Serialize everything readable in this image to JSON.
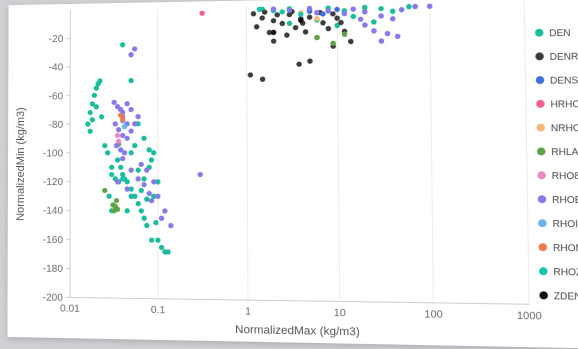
{
  "chart_data": {
    "type": "scatter",
    "title": "",
    "xlabel": "NormalizedMax (kg/m3)",
    "ylabel": "NormalizedMin (kg/m3)",
    "x_scale": "log",
    "xlim": [
      0.01,
      1000
    ],
    "ylim": [
      -200,
      0
    ],
    "x_ticks": [
      "0.01",
      "0.1",
      "1",
      "10",
      "100",
      "1000"
    ],
    "y_ticks": [
      "-20",
      "-40",
      "-60",
      "-80",
      "-100",
      "-120",
      "-140",
      "-160",
      "-180",
      "-200"
    ],
    "grid": "vertical",
    "legend_position": "right",
    "series": [
      {
        "name": "DEN",
        "color": "#1abc9c",
        "points": [
          [
            0.016,
            -80
          ],
          [
            0.017,
            -72
          ],
          [
            0.018,
            -66
          ],
          [
            0.019,
            -60
          ],
          [
            0.02,
            -55
          ],
          [
            0.021,
            -52
          ],
          [
            0.022,
            -50
          ],
          [
            0.017,
            -85
          ],
          [
            0.018,
            -77
          ],
          [
            0.02,
            -68
          ],
          [
            0.023,
            -75
          ],
          [
            0.025,
            -95
          ],
          [
            0.027,
            -100
          ],
          [
            0.03,
            -110
          ],
          [
            0.033,
            -118
          ],
          [
            0.036,
            -120
          ],
          [
            0.04,
            -115
          ],
          [
            0.045,
            -120
          ],
          [
            0.05,
            -125
          ],
          [
            0.055,
            -130
          ],
          [
            0.06,
            -135
          ],
          [
            0.065,
            -140
          ],
          [
            0.07,
            -145
          ],
          [
            0.075,
            -150
          ],
          [
            0.08,
            -110
          ],
          [
            0.085,
            -105
          ],
          [
            0.09,
            -100
          ],
          [
            0.1,
            -160
          ],
          [
            0.11,
            -165
          ],
          [
            0.12,
            -168
          ],
          [
            0.13,
            -168
          ],
          [
            0.05,
            -50
          ],
          [
            0.06,
            -80
          ],
          [
            0.07,
            -90
          ],
          [
            0.09,
            -130
          ],
          [
            0.04,
            -25
          ],
          [
            0.035,
            -105
          ],
          [
            0.028,
            -130
          ],
          [
            0.06,
            -112
          ],
          [
            0.07,
            -118
          ],
          [
            0.08,
            -98
          ],
          [
            0.045,
            -140
          ],
          [
            0.03,
            -140
          ],
          [
            0.05,
            -100
          ],
          [
            0.055,
            -95
          ],
          [
            1.5,
            -2
          ],
          [
            2,
            -3
          ],
          [
            3,
            -2
          ],
          [
            5,
            -3
          ],
          [
            8,
            -2
          ],
          [
            12,
            -4
          ],
          [
            20,
            -2
          ],
          [
            30,
            -3
          ],
          [
            3,
            -12
          ],
          [
            6,
            -10
          ],
          [
            10,
            -14
          ],
          [
            15,
            -8
          ],
          [
            25,
            -12
          ],
          [
            40,
            -5
          ],
          [
            60,
            -2
          ],
          [
            0.1,
            -120
          ],
          [
            0.095,
            -148
          ],
          [
            0.085,
            -160
          ],
          [
            0.065,
            -126
          ],
          [
            0.075,
            -132
          ],
          [
            0.05,
            -130
          ],
          [
            0.042,
            -118
          ],
          [
            0.038,
            -110
          ]
        ]
      },
      {
        "name": "DENR",
        "color": "#3c3c3c",
        "points": [
          [
            1.2,
            -5
          ],
          [
            1.5,
            -8
          ],
          [
            2,
            -10
          ],
          [
            2.5,
            -12
          ],
          [
            3,
            -6
          ],
          [
            3.5,
            -15
          ],
          [
            4,
            -9
          ],
          [
            4.5,
            -18
          ],
          [
            5,
            -8
          ],
          [
            6,
            -22
          ],
          [
            7,
            -12
          ],
          [
            8,
            -16
          ],
          [
            9,
            -28
          ],
          [
            2,
            -24
          ],
          [
            2.8,
            -20
          ],
          [
            1.8,
            -18
          ],
          [
            1.1,
            -47
          ],
          [
            1.5,
            -50
          ],
          [
            3.8,
            -40
          ],
          [
            5,
            -38
          ],
          [
            1.3,
            -14
          ],
          [
            2.2,
            -6
          ],
          [
            3.2,
            -4
          ],
          [
            6.5,
            -5
          ],
          [
            10,
            -9
          ],
          [
            12,
            -18
          ],
          [
            14,
            -25
          ],
          [
            1.6,
            -4
          ],
          [
            4.2,
            -12
          ],
          [
            9,
            -6
          ],
          [
            11,
            -12
          ]
        ]
      },
      {
        "name": "DENSITY",
        "color": "#3f6fd8",
        "points": [
          [
            5,
            -4
          ],
          [
            7,
            -6
          ],
          [
            10,
            -3
          ]
        ]
      },
      {
        "name": "HRHO",
        "color": "#ef6291",
        "points": [
          [
            0.32,
            -4
          ]
        ]
      },
      {
        "name": "NRHO",
        "color": "#f7b878",
        "points": [
          [
            4,
            -5
          ],
          [
            6,
            -9
          ]
        ]
      },
      {
        "name": "RHLA",
        "color": "#5ea447",
        "points": [
          [
            0.033,
            -137
          ],
          [
            0.035,
            -139
          ],
          [
            0.031,
            -136
          ],
          [
            0.034,
            -133
          ],
          [
            0.032,
            -140
          ],
          [
            0.036,
            -94
          ],
          [
            0.025,
            -126
          ],
          [
            6,
            -22
          ],
          [
            9,
            -26
          ],
          [
            12,
            -20
          ]
        ]
      },
      {
        "name": "RHO8",
        "color": "#e58cc8",
        "points": [
          [
            0.035,
            -88
          ],
          [
            0.036,
            -92
          ]
        ]
      },
      {
        "name": "RHOB",
        "color": "#8679e8",
        "points": [
          [
            0.032,
            -65
          ],
          [
            0.035,
            -68
          ],
          [
            0.038,
            -70
          ],
          [
            0.04,
            -72
          ],
          [
            0.045,
            -66
          ],
          [
            0.05,
            -70
          ],
          [
            0.06,
            -75
          ],
          [
            0.033,
            -80
          ],
          [
            0.036,
            -84
          ],
          [
            0.04,
            -88
          ],
          [
            0.045,
            -90
          ],
          [
            0.05,
            -85
          ],
          [
            0.055,
            -80
          ],
          [
            0.034,
            -95
          ],
          [
            0.038,
            -98
          ],
          [
            0.042,
            -100
          ],
          [
            0.05,
            -112
          ],
          [
            0.06,
            -118
          ],
          [
            0.07,
            -122
          ],
          [
            0.08,
            -128
          ],
          [
            0.09,
            -120
          ],
          [
            0.1,
            -130
          ],
          [
            0.12,
            -140
          ],
          [
            0.14,
            -150
          ],
          [
            0.3,
            -115
          ],
          [
            0.055,
            -28
          ],
          [
            0.05,
            -32
          ],
          [
            0.04,
            -104
          ],
          [
            0.035,
            -120
          ],
          [
            0.045,
            -125
          ],
          [
            0.065,
            -108
          ],
          [
            0.075,
            -112
          ],
          [
            0.085,
            -133
          ],
          [
            0.11,
            -145
          ],
          [
            2,
            -2
          ],
          [
            3,
            -3
          ],
          [
            5,
            -2
          ],
          [
            8,
            -4
          ],
          [
            15,
            -3
          ],
          [
            20,
            -5
          ],
          [
            30,
            -8
          ],
          [
            40,
            -10
          ],
          [
            50,
            -4
          ],
          [
            70,
            -2
          ],
          [
            100,
            -2
          ],
          [
            35,
            -20
          ],
          [
            45,
            -22
          ],
          [
            20,
            -14
          ],
          [
            25,
            -18
          ],
          [
            30,
            -25
          ],
          [
            18,
            -10
          ],
          [
            12,
            -6
          ],
          [
            6,
            -5
          ],
          [
            0.04,
            -75
          ],
          [
            0.045,
            -80
          ]
        ]
      },
      {
        "name": "RHOI",
        "color": "#6cb2ea",
        "points": [
          [
            0.04,
            -78
          ],
          [
            0.042,
            -82
          ]
        ]
      },
      {
        "name": "RHOM",
        "color": "#ef7a4c",
        "points": [
          [
            0.038,
            -74
          ],
          [
            0.04,
            -77
          ]
        ]
      },
      {
        "name": "RHOZ",
        "color": "#17c3a9",
        "points": [
          [
            0.03,
            -115
          ],
          [
            0.04,
            -118
          ],
          [
            1.4,
            -2
          ],
          [
            2.5,
            -4
          ],
          [
            4,
            -6
          ]
        ]
      },
      {
        "name": "ZDEN",
        "color": "#111111",
        "points": [
          [
            2,
            -18
          ],
          [
            4,
            -10
          ]
        ]
      }
    ]
  }
}
